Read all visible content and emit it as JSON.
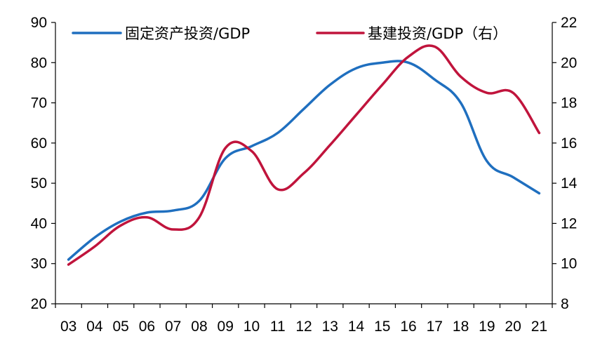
{
  "chart_data": {
    "type": "line",
    "title": "",
    "xlabel": "",
    "ylabel": "",
    "categories": [
      "03",
      "04",
      "05",
      "06",
      "07",
      "08",
      "09",
      "10",
      "11",
      "12",
      "13",
      "14",
      "15",
      "16",
      "17",
      "18",
      "19",
      "20",
      "21"
    ],
    "ylim_left": [
      20,
      90
    ],
    "yticks_left": [
      20,
      30,
      40,
      50,
      60,
      70,
      80,
      90
    ],
    "ylim_right": [
      8,
      22
    ],
    "yticks_right": [
      8,
      10,
      12,
      14,
      16,
      18,
      20,
      22
    ],
    "legend_position": "top",
    "grid": false,
    "series": [
      {
        "name": "固定资产投资/GDP",
        "axis": "left",
        "color": "#1f6fbf",
        "values": [
          31,
          36.5,
          40.5,
          42.7,
          43.2,
          45.6,
          56.2,
          59.2,
          62.5,
          68.5,
          74.5,
          78.6,
          80.0,
          80.0,
          75.8,
          70.0,
          55.5,
          51.5,
          47.5
        ]
      },
      {
        "name": "基建投资/GDP（右）",
        "axis": "right",
        "color": "#c0143c",
        "values": [
          9.95,
          10.85,
          11.9,
          12.3,
          11.7,
          12.3,
          15.75,
          15.6,
          13.7,
          14.5,
          15.9,
          17.4,
          18.9,
          20.3,
          20.8,
          19.3,
          18.5,
          18.5,
          16.5
        ]
      }
    ]
  }
}
